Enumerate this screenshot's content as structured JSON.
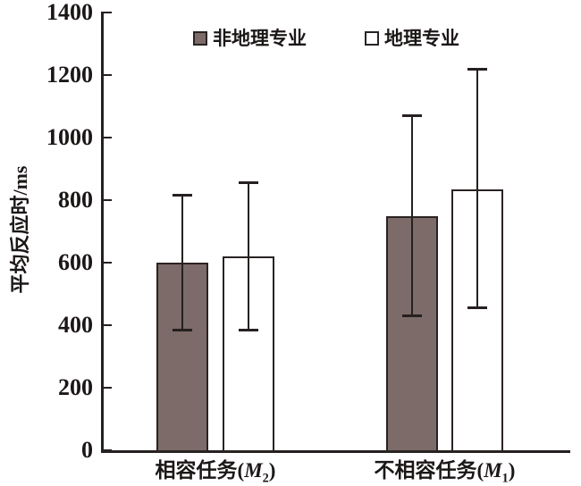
{
  "chart_data": {
    "type": "bar",
    "title": "",
    "xlabel": "",
    "ylabel": "平均反应时/ms",
    "ylim": [
      0,
      1400
    ],
    "yticks": [
      0,
      200,
      400,
      600,
      800,
      1000,
      1200,
      1400
    ],
    "grid": false,
    "legend_position": "top-center",
    "categories": [
      {
        "prefix": "相容任务(",
        "var": "M",
        "sub": "2",
        "suffix": ")"
      },
      {
        "prefix": "不相容任务(",
        "var": "M",
        "sub": "1",
        "suffix": ")"
      }
    ],
    "series": [
      {
        "name": "非地理专业",
        "swatch": "filled",
        "fill": "#7c6b69",
        "values": [
          600,
          750
        ],
        "err_low": [
          385,
          430
        ],
        "err_high": [
          815,
          1070
        ]
      },
      {
        "name": "地理专业",
        "swatch": "open",
        "fill": "#ffffff",
        "values": [
          620,
          835
        ],
        "err_low": [
          385,
          455
        ],
        "err_high": [
          855,
          1220
        ]
      }
    ]
  },
  "colors": {
    "axis": "#262020",
    "text": "#1c1717",
    "bar_border": "#2a2322",
    "bar_fill_filled": "#7c6b69",
    "bar_fill_open": "#ffffff",
    "background": "#ffffff"
  }
}
